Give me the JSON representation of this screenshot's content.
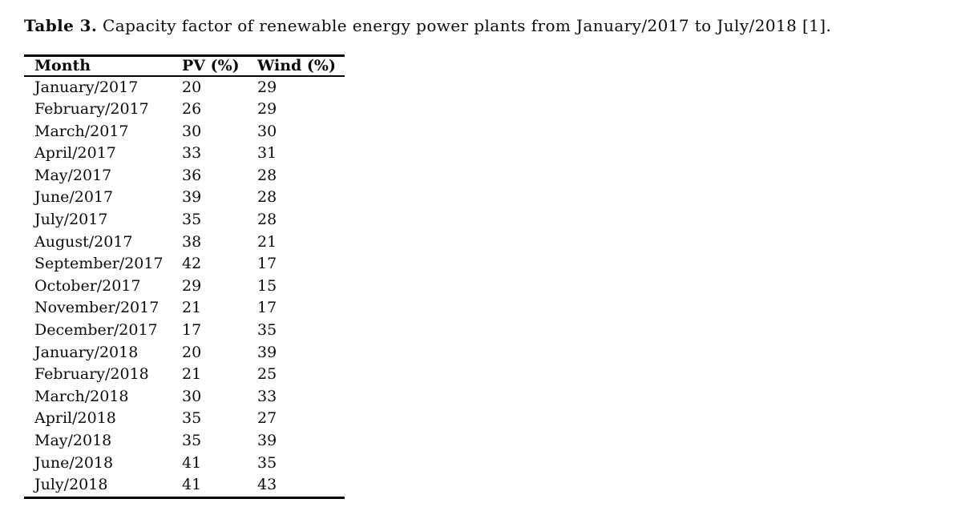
{
  "caption": {
    "label": "Table 3.",
    "text": "Capacity factor of renewable energy power plants from January/2017 to July/2018 [1]."
  },
  "table": {
    "columns": [
      "Month",
      "PV (%)",
      "Wind (%)"
    ],
    "rows": [
      {
        "month": "January/2017",
        "pv": "20",
        "wind": "29"
      },
      {
        "month": "February/2017",
        "pv": "26",
        "wind": "29"
      },
      {
        "month": "March/2017",
        "pv": "30",
        "wind": "30"
      },
      {
        "month": "April/2017",
        "pv": "33",
        "wind": "31"
      },
      {
        "month": "May/2017",
        "pv": "36",
        "wind": "28"
      },
      {
        "month": "June/2017",
        "pv": "39",
        "wind": "28"
      },
      {
        "month": "July/2017",
        "pv": "35",
        "wind": "28"
      },
      {
        "month": "August/2017",
        "pv": "38",
        "wind": "21"
      },
      {
        "month": "September/2017",
        "pv": "42",
        "wind": "17"
      },
      {
        "month": "October/2017",
        "pv": "29",
        "wind": "15"
      },
      {
        "month": "November/2017",
        "pv": "21",
        "wind": "17"
      },
      {
        "month": "December/2017",
        "pv": "17",
        "wind": "35"
      },
      {
        "month": "January/2018",
        "pv": "20",
        "wind": "39"
      },
      {
        "month": "February/2018",
        "pv": "21",
        "wind": "25"
      },
      {
        "month": "March/2018",
        "pv": "30",
        "wind": "33"
      },
      {
        "month": "April/2018",
        "pv": "35",
        "wind": "27"
      },
      {
        "month": "May/2018",
        "pv": "35",
        "wind": "39"
      },
      {
        "month": "June/2018",
        "pv": "41",
        "wind": "35"
      },
      {
        "month": "July/2018",
        "pv": "41",
        "wind": "43"
      }
    ]
  },
  "colors": {
    "background": "#ffffff",
    "text": "#0b0b0b",
    "rule": "#000000"
  }
}
